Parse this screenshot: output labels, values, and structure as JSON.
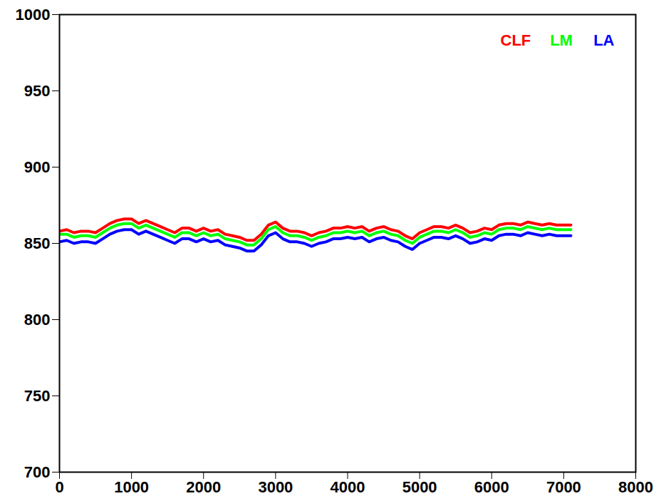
{
  "chart_data": {
    "type": "line",
    "x": [
      0,
      100,
      200,
      300,
      400,
      500,
      600,
      700,
      800,
      900,
      1000,
      1100,
      1200,
      1300,
      1400,
      1500,
      1600,
      1700,
      1800,
      1900,
      2000,
      2100,
      2200,
      2300,
      2400,
      2500,
      2600,
      2700,
      2800,
      2900,
      3000,
      3100,
      3200,
      3300,
      3400,
      3500,
      3600,
      3700,
      3800,
      3900,
      4000,
      4100,
      4200,
      4300,
      4400,
      4500,
      4600,
      4700,
      4800,
      4900,
      5000,
      5100,
      5200,
      5300,
      5400,
      5500,
      5600,
      5700,
      5800,
      5900,
      6000,
      6100,
      6200,
      6300,
      6400,
      6500,
      6600,
      6700,
      6800,
      6900,
      7000,
      7100
    ],
    "series": [
      {
        "name": "CLF",
        "color": "#ff0000",
        "values": [
          858,
          859,
          857,
          858,
          858,
          857,
          860,
          863,
          865,
          866,
          866,
          863,
          865,
          863,
          861,
          859,
          857,
          860,
          860,
          858,
          860,
          858,
          859,
          856,
          855,
          854,
          852,
          852,
          856,
          862,
          864,
          860,
          858,
          858,
          857,
          855,
          857,
          858,
          860,
          860,
          861,
          860,
          861,
          858,
          860,
          861,
          859,
          858,
          855,
          853,
          857,
          859,
          861,
          861,
          860,
          862,
          860,
          857,
          858,
          860,
          859,
          862,
          863,
          863,
          862,
          864,
          863,
          862,
          863,
          862,
          862,
          862
        ]
      },
      {
        "name": "LM",
        "color": "#00ff00",
        "values": [
          856,
          856,
          854,
          855,
          855,
          854,
          857,
          860,
          862,
          863,
          863,
          860,
          862,
          860,
          858,
          856,
          854,
          857,
          857,
          855,
          857,
          855,
          856,
          853,
          852,
          851,
          849,
          849,
          853,
          859,
          861,
          857,
          855,
          855,
          854,
          852,
          854,
          855,
          857,
          857,
          858,
          857,
          858,
          855,
          857,
          858,
          856,
          855,
          852,
          850,
          854,
          856,
          858,
          858,
          857,
          859,
          857,
          854,
          855,
          857,
          856,
          859,
          860,
          860,
          859,
          861,
          860,
          859,
          860,
          859,
          859,
          859
        ]
      },
      {
        "name": "LA",
        "color": "#0000ff",
        "values": [
          851,
          852,
          850,
          851,
          851,
          850,
          853,
          856,
          858,
          859,
          859,
          856,
          858,
          856,
          854,
          852,
          850,
          853,
          853,
          851,
          853,
          851,
          852,
          849,
          848,
          847,
          845,
          845,
          849,
          855,
          857,
          853,
          851,
          851,
          850,
          848,
          850,
          851,
          853,
          853,
          854,
          853,
          854,
          851,
          853,
          854,
          852,
          851,
          848,
          846,
          850,
          852,
          854,
          854,
          853,
          855,
          853,
          850,
          851,
          853,
          852,
          855,
          856,
          856,
          855,
          857,
          856,
          855,
          856,
          855,
          855,
          855
        ]
      }
    ],
    "xlim": [
      0,
      8000
    ],
    "xticks": [
      0,
      1000,
      2000,
      3000,
      4000,
      5000,
      6000,
      7000,
      8000
    ],
    "ylim": [
      700,
      1000
    ],
    "yticks": [
      700,
      750,
      800,
      850,
      900,
      950,
      1000
    ],
    "legend": "top-right"
  }
}
